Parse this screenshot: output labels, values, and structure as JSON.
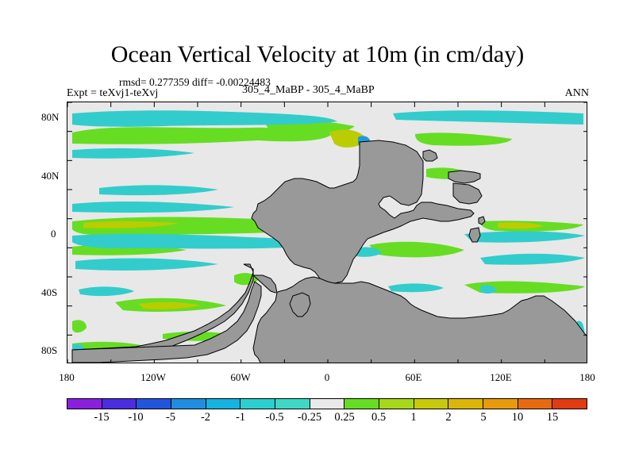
{
  "title": "Ocean Vertical Velocity at 10m (in cm/day)",
  "stats": "rmsd= 0.277359 diff= -0.00224483",
  "expt": "Expt = teXvj1-teXvj",
  "center_label": "305_4_MaBP - 305_4_MaBP",
  "season": "ANN",
  "axes": {
    "lat_ticks": [
      "80N",
      "40N",
      "0",
      "40S",
      "80S"
    ],
    "lon_ticks": [
      "180",
      "120W",
      "60W",
      "0",
      "60E",
      "120E",
      "180"
    ]
  },
  "colors": {
    "ocean_background": "#e8e8e8",
    "land": "#999999",
    "pos_small": "#66dd22",
    "pos_mid": "#bbcc00",
    "pos_large": "#ddbb00",
    "neg_small": "#33cccc",
    "neg_mid": "#2299dd"
  },
  "colorbar": {
    "colors": [
      "#8b1fe0",
      "#4a2de0",
      "#2255dd",
      "#1f8ee0",
      "#15b3e0",
      "#2ccfd0",
      "#3fd8c6",
      "#e9e9e9",
      "#66dd22",
      "#a6d91a",
      "#c8c90a",
      "#dcb50a",
      "#e89a0c",
      "#e86a10",
      "#e23a12"
    ],
    "labels": [
      "-15",
      "-10",
      "-5",
      "-2",
      "-1",
      "-0.5",
      "-0.25",
      "0.25",
      "0.5",
      "1",
      "2",
      "5",
      "10",
      "15"
    ]
  }
}
